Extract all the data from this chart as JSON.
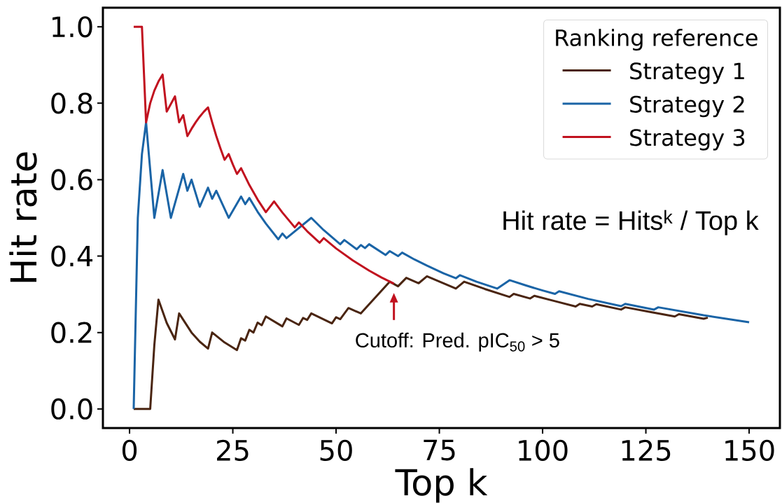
{
  "chart_data": {
    "type": "line",
    "xlabel": "Top k",
    "ylabel": "Hit rate",
    "legend_title": "Ranking reference",
    "legend": "top right",
    "xlim": [
      -6.45,
      157.45
    ],
    "ylim": [
      -0.05,
      1.05
    ],
    "xticks": [
      0,
      25,
      50,
      75,
      100,
      125,
      150
    ],
    "yticks": [
      {
        "value": 0,
        "label": "0.0"
      },
      0.2,
      0.4,
      0.6,
      0.8,
      {
        "value": 1,
        "label": "1.0"
      }
    ],
    "annotations": [
      "Hit rate = Hits$^{k}$ / Top k",
      {
        "text": "Cutoff: Pred. pIC$_{50}$ > 5",
        "x": 64,
        "y": 0.328
      }
    ],
    "series": [
      {
        "name": "Strategy 1",
        "color": "#4a2511",
        "x": [
          1,
          5,
          6,
          7,
          9,
          11,
          12,
          15,
          17,
          19,
          20,
          23,
          26,
          27,
          28,
          29,
          30,
          31,
          32,
          33,
          37,
          38,
          41,
          42,
          43,
          44,
          49,
          50,
          51,
          53,
          56,
          63,
          65,
          67,
          70,
          72,
          76,
          79,
          81,
          86,
          92,
          93,
          97,
          98,
          103,
          108,
          109,
          112,
          113,
          119,
          120,
          126,
          132,
          133,
          139,
          140
        ],
        "values": [
          0,
          0,
          0.167,
          0.286,
          0.225,
          0.182,
          0.25,
          0.2,
          0.176,
          0.158,
          0.2,
          0.174,
          0.154,
          0.185,
          0.179,
          0.207,
          0.2,
          0.226,
          0.219,
          0.242,
          0.216,
          0.237,
          0.22,
          0.238,
          0.233,
          0.25,
          0.224,
          0.24,
          0.235,
          0.264,
          0.25,
          0.333,
          0.321,
          0.343,
          0.329,
          0.347,
          0.329,
          0.315,
          0.333,
          0.314,
          0.293,
          0.301,
          0.289,
          0.296,
          0.282,
          0.268,
          0.275,
          0.268,
          0.274,
          0.26,
          0.266,
          0.254,
          0.242,
          0.248,
          0.236,
          0.239
        ]
      },
      {
        "name": "Strategy 2",
        "color": "#1a64a6",
        "x": [
          1,
          2,
          3,
          4,
          6,
          8,
          10,
          13,
          14,
          15,
          17,
          19,
          20,
          21,
          24,
          27,
          28,
          29,
          31,
          33,
          36,
          37,
          38,
          44,
          47,
          51,
          52,
          55,
          56,
          57,
          58,
          62,
          63,
          65,
          66,
          69,
          72,
          76,
          79,
          80,
          84,
          89,
          92,
          96,
          100,
          103,
          104,
          111,
          119,
          120,
          127,
          128,
          139,
          150
        ],
        "values": [
          0,
          0.5,
          0.667,
          0.75,
          0.5,
          0.625,
          0.5,
          0.615,
          0.571,
          0.6,
          0.529,
          0.579,
          0.55,
          0.571,
          0.5,
          0.556,
          0.536,
          0.552,
          0.516,
          0.485,
          0.444,
          0.459,
          0.447,
          0.5,
          0.468,
          0.431,
          0.442,
          0.418,
          0.429,
          0.421,
          0.431,
          0.403,
          0.413,
          0.4,
          0.409,
          0.391,
          0.375,
          0.355,
          0.342,
          0.35,
          0.333,
          0.315,
          0.337,
          0.323,
          0.31,
          0.301,
          0.308,
          0.288,
          0.269,
          0.275,
          0.26,
          0.266,
          0.245,
          0.227
        ]
      },
      {
        "name": "Strategy 3",
        "color": "#c1121f",
        "x": [
          1,
          3,
          4,
          5,
          6,
          7,
          8,
          9,
          11,
          12,
          13,
          14,
          15,
          16,
          17,
          18,
          19,
          20,
          21,
          22,
          23,
          24,
          25,
          26,
          27,
          29,
          31,
          33,
          34,
          35,
          37,
          40,
          41,
          43,
          46,
          47,
          50,
          54,
          58,
          61,
          64
        ],
        "values": [
          1,
          1,
          0.75,
          0.8,
          0.833,
          0.857,
          0.875,
          0.778,
          0.818,
          0.75,
          0.769,
          0.714,
          0.733,
          0.75,
          0.765,
          0.778,
          0.789,
          0.75,
          0.714,
          0.682,
          0.652,
          0.667,
          0.64,
          0.615,
          0.63,
          0.586,
          0.548,
          0.515,
          0.529,
          0.543,
          0.514,
          0.475,
          0.488,
          0.465,
          0.435,
          0.447,
          0.42,
          0.389,
          0.362,
          0.344,
          0.328
        ]
      }
    ]
  }
}
